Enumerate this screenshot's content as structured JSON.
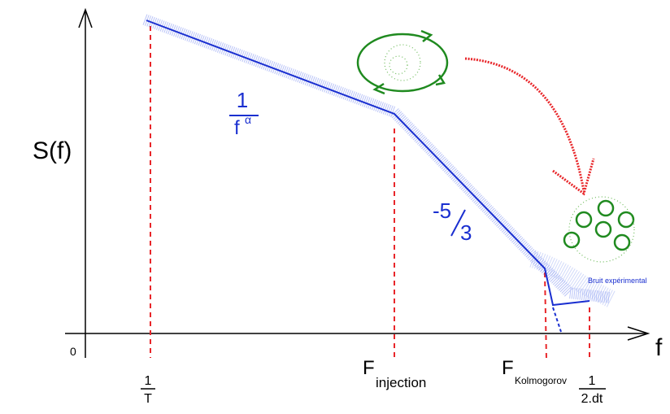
{
  "axes": {
    "y_label": "S(f)",
    "x_label": "f",
    "origin": "0"
  },
  "markers": [
    {
      "numerator": "1",
      "denominator": "T"
    },
    {
      "main": "F",
      "subscript": "injection"
    },
    {
      "main": "F",
      "subscript": "Kolmogorov"
    },
    {
      "numerator": "1",
      "denominator": "2.dt"
    }
  ],
  "slopes": [
    {
      "numerator": "1",
      "base": "f",
      "exponent": "α"
    },
    {
      "numerator": "-5",
      "denominator": "3"
    }
  ],
  "annotations": {
    "noise": "Bruit expérimental"
  }
}
